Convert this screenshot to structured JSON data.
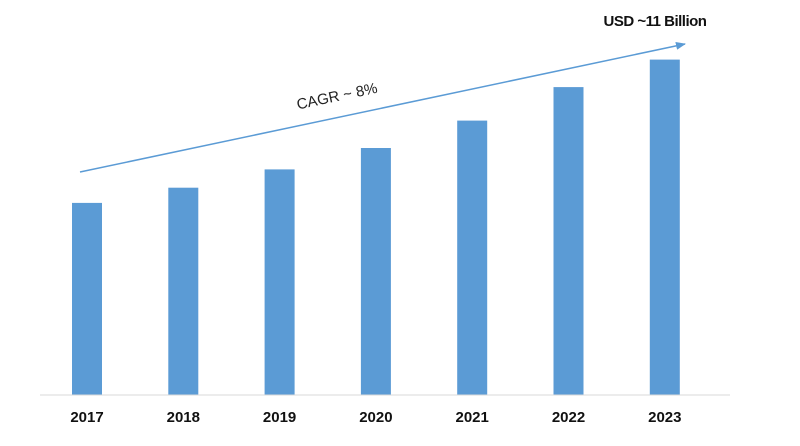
{
  "chart_data": {
    "type": "bar",
    "categories": [
      "2017",
      "2018",
      "2019",
      "2020",
      "2021",
      "2022",
      "2023"
    ],
    "values": [
      6.3,
      6.8,
      7.4,
      8.1,
      9.0,
      10.1,
      11.0
    ],
    "ylim": [
      0,
      12.3
    ],
    "grid": false,
    "legend": "none",
    "annotations": {
      "cagr": "CAGR ~ 8%",
      "end_value": "USD ~11 Billion"
    },
    "colors": {
      "bar": "#5b9bd5",
      "arrow": "#5b9bd5",
      "axis": "#d9d9d9"
    }
  }
}
